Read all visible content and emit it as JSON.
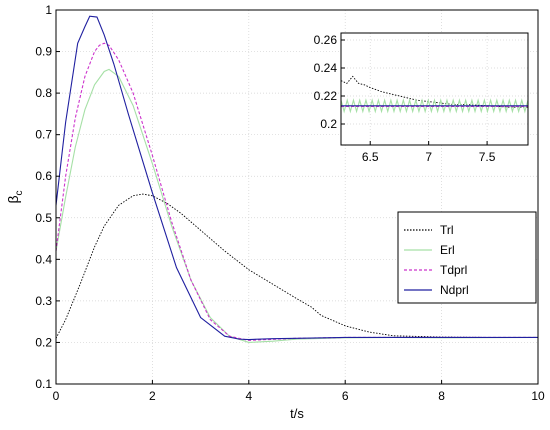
{
  "chart_data": [
    {
      "type": "line",
      "title": "",
      "xlabel": "t/s",
      "ylabel": "β",
      "ylabel_subscript": "c",
      "xlim": [
        0,
        10
      ],
      "ylim": [
        0.1,
        1.0
      ],
      "xticks": [
        0,
        2,
        4,
        6,
        8,
        10
      ],
      "yticks": [
        0.1,
        0.2,
        0.3,
        0.4,
        0.5,
        0.6,
        0.7,
        0.8,
        0.9,
        1
      ],
      "xtick_labels": [
        "0",
        "2",
        "4",
        "6",
        "8",
        "10"
      ],
      "ytick_labels": [
        "0.1",
        "0.2",
        "0.3",
        "0.4",
        "0.5",
        "0.6",
        "0.7",
        "0.8",
        "0.9",
        "1"
      ],
      "grid": true,
      "legend_position": "center-right",
      "series": [
        {
          "name": "Trl",
          "color": "#000000",
          "dash": "dotted",
          "x": [
            0,
            0.2,
            0.5,
            0.8,
            1.0,
            1.3,
            1.6,
            1.8,
            2.0,
            2.3,
            2.6,
            3.0,
            3.5,
            4.0,
            4.5,
            5.0,
            5.3,
            5.5,
            6.0,
            6.5,
            7.0,
            8.0,
            9.0,
            10.0
          ],
          "y": [
            0.21,
            0.255,
            0.34,
            0.43,
            0.48,
            0.53,
            0.553,
            0.557,
            0.553,
            0.535,
            0.51,
            0.47,
            0.42,
            0.375,
            0.34,
            0.305,
            0.285,
            0.265,
            0.24,
            0.225,
            0.216,
            0.213,
            0.212,
            0.212
          ]
        },
        {
          "name": "Erl",
          "color": "#a6e0a6",
          "dash": "solid",
          "x": [
            0,
            0.2,
            0.4,
            0.6,
            0.8,
            1.0,
            1.1,
            1.3,
            1.6,
            2.0,
            2.4,
            2.8,
            3.2,
            3.6,
            4.0,
            4.5,
            5.0,
            6.0,
            7.0,
            8.0,
            10.0
          ],
          "y": [
            0.42,
            0.55,
            0.67,
            0.76,
            0.82,
            0.852,
            0.857,
            0.84,
            0.77,
            0.63,
            0.48,
            0.35,
            0.26,
            0.215,
            0.2,
            0.203,
            0.208,
            0.211,
            0.212,
            0.211,
            0.212
          ]
        },
        {
          "name": "Tdprl",
          "color": "#cc33cc",
          "dash": "dashed",
          "x": [
            0,
            0.2,
            0.4,
            0.6,
            0.8,
            0.9,
            1.0,
            1.1,
            1.3,
            1.6,
            2.0,
            2.4,
            2.8,
            3.2,
            3.6,
            4.0,
            5.0,
            6.0,
            8.0,
            10.0
          ],
          "y": [
            0.42,
            0.6,
            0.74,
            0.84,
            0.9,
            0.915,
            0.92,
            0.915,
            0.88,
            0.8,
            0.65,
            0.49,
            0.35,
            0.255,
            0.215,
            0.205,
            0.21,
            0.212,
            0.212,
            0.212
          ]
        },
        {
          "name": "Ndprl",
          "color": "#2020a0",
          "dash": "solid",
          "x": [
            0,
            0.2,
            0.45,
            0.6,
            0.7,
            0.85,
            1.0,
            1.2,
            1.5,
            2.0,
            2.5,
            3.0,
            3.5,
            3.8,
            4.0,
            4.5,
            5.0,
            6.0,
            8.0,
            10.0
          ],
          "y": [
            0.53,
            0.73,
            0.92,
            0.96,
            0.985,
            0.983,
            0.94,
            0.87,
            0.75,
            0.56,
            0.38,
            0.26,
            0.215,
            0.208,
            0.207,
            0.209,
            0.21,
            0.212,
            0.212,
            0.212
          ]
        }
      ]
    },
    {
      "type": "line",
      "title": "",
      "xlim": [
        6.25,
        7.85
      ],
      "ylim": [
        0.185,
        0.265
      ],
      "xticks": [
        6.5,
        7.0,
        7.5
      ],
      "yticks": [
        0.2,
        0.22,
        0.24,
        0.26
      ],
      "xtick_labels": [
        "6.5",
        "7",
        "7.5"
      ],
      "ytick_labels": [
        "0.2",
        "0.22",
        "0.24",
        "0.26"
      ],
      "grid": true,
      "series": [
        {
          "color": "#000000",
          "dash": "dotted",
          "x": [
            6.25,
            6.3,
            6.35,
            6.4,
            6.45,
            6.5,
            6.6,
            6.7,
            6.8,
            6.9,
            7.0,
            7.1,
            7.2,
            7.3,
            7.5,
            7.7,
            7.85
          ],
          "y": [
            0.231,
            0.229,
            0.234,
            0.229,
            0.228,
            0.226,
            0.223,
            0.221,
            0.219,
            0.217,
            0.216,
            0.215,
            0.214,
            0.214,
            0.213,
            0.212,
            0.212
          ]
        },
        {
          "color": "#a6e0a6",
          "dash": "solid",
          "x": [
            6.25,
            7.85
          ],
          "y": [
            0.213,
            0.213
          ],
          "ripple": 0.004
        },
        {
          "color": "#cc33cc",
          "dash": "dashed",
          "x": [
            6.25,
            7.85
          ],
          "y": [
            0.2125,
            0.2125
          ]
        },
        {
          "color": "#2020a0",
          "dash": "solid",
          "x": [
            6.25,
            7.85
          ],
          "y": [
            0.213,
            0.213
          ]
        }
      ]
    }
  ]
}
